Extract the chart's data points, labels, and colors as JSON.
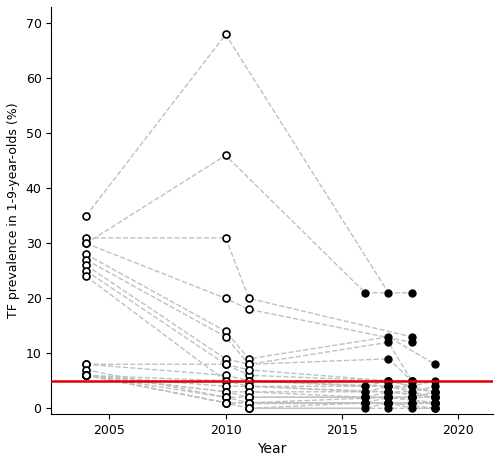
{
  "ylabel": "TF prevalence in 1-9-year-olds (%)",
  "xlabel": "Year",
  "ylim": [
    -1,
    73
  ],
  "xlim": [
    2002.5,
    2021.5
  ],
  "threshold": 5,
  "threshold_color": "#dd0000",
  "line_color": "#c0c0c0",
  "xticks": [
    2005,
    2010,
    2015,
    2020
  ],
  "yticks": [
    0,
    10,
    20,
    30,
    40,
    50,
    60,
    70
  ],
  "series": [
    {
      "years": [
        2004,
        2010,
        2017
      ],
      "values": [
        35,
        68,
        21
      ]
    },
    {
      "years": [
        2004,
        2010,
        2016,
        2018
      ],
      "values": [
        30,
        46,
        21,
        21
      ]
    },
    {
      "years": [
        2004,
        2010,
        2011,
        2018
      ],
      "values": [
        31,
        31,
        20,
        13
      ]
    },
    {
      "years": [
        2004,
        2010,
        2011,
        2018
      ],
      "values": [
        30,
        20,
        18,
        12
      ]
    },
    {
      "years": [
        2004,
        2010,
        2011,
        2017,
        2019
      ],
      "values": [
        28,
        14,
        9,
        13,
        8
      ]
    },
    {
      "years": [
        2004,
        2010,
        2011,
        2017,
        2018
      ],
      "values": [
        27,
        13,
        8,
        12,
        5
      ]
    },
    {
      "years": [
        2004,
        2010,
        2011,
        2017,
        2018
      ],
      "values": [
        26,
        9,
        8,
        9,
        5
      ]
    },
    {
      "years": [
        2004,
        2010,
        2011,
        2017,
        2018
      ],
      "values": [
        25,
        8,
        6,
        5,
        5
      ]
    },
    {
      "years": [
        2004,
        2010,
        2011,
        2017,
        2018
      ],
      "values": [
        24,
        5,
        5,
        5,
        4
      ]
    },
    {
      "years": [
        2004,
        2010,
        2011,
        2017,
        2019
      ],
      "values": [
        8,
        8,
        7,
        5,
        3
      ]
    },
    {
      "years": [
        2004,
        2010,
        2011,
        2017,
        2019
      ],
      "values": [
        8,
        6,
        5,
        4,
        3
      ]
    },
    {
      "years": [
        2004,
        2010,
        2011,
        2017,
        2019
      ],
      "values": [
        6,
        5,
        4,
        4,
        2
      ]
    },
    {
      "years": [
        2004,
        2010,
        2011,
        2017,
        2019
      ],
      "values": [
        6,
        4,
        4,
        3,
        2
      ]
    },
    {
      "years": [
        2004,
        2010,
        2011,
        2017,
        2019
      ],
      "values": [
        6,
        3,
        3,
        3,
        2
      ]
    },
    {
      "years": [
        2004,
        2010,
        2011,
        2016,
        2018
      ],
      "values": [
        6,
        3,
        2,
        2,
        2
      ]
    },
    {
      "years": [
        2004,
        2010,
        2011,
        2017,
        2019
      ],
      "values": [
        7,
        2,
        2,
        2,
        1
      ]
    },
    {
      "years": [
        2004,
        2010,
        2011,
        2017,
        2019
      ],
      "values": [
        6,
        2,
        1,
        2,
        1
      ]
    },
    {
      "years": [
        2004,
        2010,
        2011,
        2017,
        2019
      ],
      "values": [
        6,
        1,
        1,
        1,
        1
      ]
    },
    {
      "years": [
        2004,
        2010,
        2011,
        2017,
        2019
      ],
      "values": [
        6,
        1,
        1,
        1,
        0
      ]
    },
    {
      "years": [
        2004,
        2010,
        2011,
        2017,
        2019
      ],
      "values": [
        6,
        1,
        0,
        0,
        0
      ]
    },
    {
      "years": [
        2011,
        2016,
        2017,
        2018
      ],
      "values": [
        5,
        4,
        5,
        5
      ]
    },
    {
      "years": [
        2011,
        2016,
        2017,
        2018,
        2019
      ],
      "values": [
        4,
        3,
        4,
        4,
        5
      ]
    },
    {
      "years": [
        2011,
        2016,
        2017,
        2018,
        2019
      ],
      "values": [
        3,
        2,
        3,
        3,
        4
      ]
    },
    {
      "years": [
        2011,
        2016,
        2017,
        2018,
        2019
      ],
      "values": [
        2,
        2,
        2,
        2,
        3
      ]
    },
    {
      "years": [
        2011,
        2016,
        2017,
        2018,
        2019
      ],
      "values": [
        1,
        1,
        2,
        2,
        2
      ]
    },
    {
      "years": [
        2011,
        2016,
        2017,
        2018,
        2019
      ],
      "values": [
        1,
        1,
        1,
        1,
        1
      ]
    },
    {
      "years": [
        2011,
        2016,
        2017,
        2018,
        2019
      ],
      "values": [
        0,
        1,
        1,
        1,
        1
      ]
    },
    {
      "years": [
        2011,
        2016,
        2017,
        2018,
        2019
      ],
      "values": [
        0,
        0,
        1,
        0,
        0
      ]
    }
  ],
  "open_circle_cutoff_year": 2015,
  "open_circle_color": "white",
  "open_circle_edge": "black",
  "filled_circle_color": "black",
  "marker_size": 5,
  "linewidth": 1.0
}
